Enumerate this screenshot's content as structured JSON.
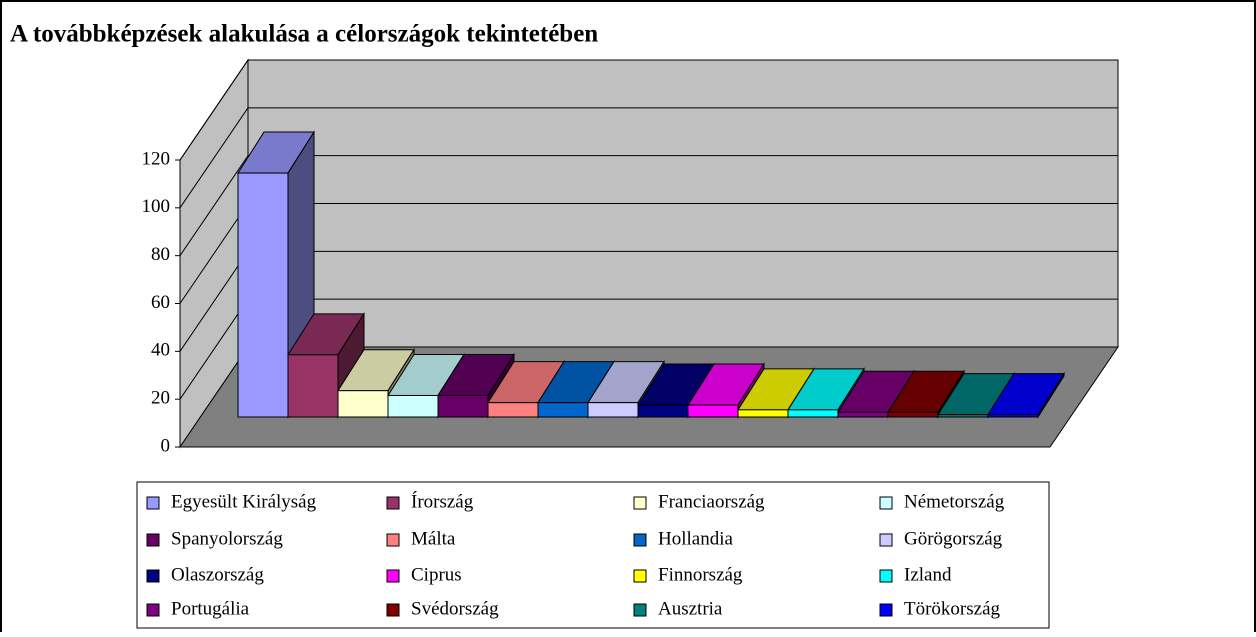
{
  "chart_data": {
    "type": "bar3d",
    "title": "A továbbképzések alakulása a célországok tekintetében",
    "categories": [
      "Egyesült Királyság",
      "Írország",
      "Franciaország",
      "Németország",
      "Spanyolország",
      "Málta",
      "Hollandia",
      "Görögország",
      "Olaszország",
      "Ciprus",
      "Finnország",
      "Izland",
      "Portugália",
      "Svédország",
      "Ausztria",
      "Törökország"
    ],
    "values": [
      102,
      26,
      11,
      9,
      9,
      6,
      6,
      6,
      5,
      5,
      3,
      3,
      2,
      2,
      1,
      1
    ],
    "colors": [
      "#9999ff",
      "#993366",
      "#ffffcc",
      "#ccffff",
      "#660066",
      "#ff8080",
      "#0066cc",
      "#ccccff",
      "#000080",
      "#ff00ff",
      "#ffff00",
      "#00ffff",
      "#800080",
      "#800000",
      "#008080",
      "#0000ff"
    ],
    "ylim": [
      0,
      120
    ],
    "yticks": [
      0,
      20,
      40,
      60,
      80,
      100,
      120
    ],
    "grid": true
  }
}
